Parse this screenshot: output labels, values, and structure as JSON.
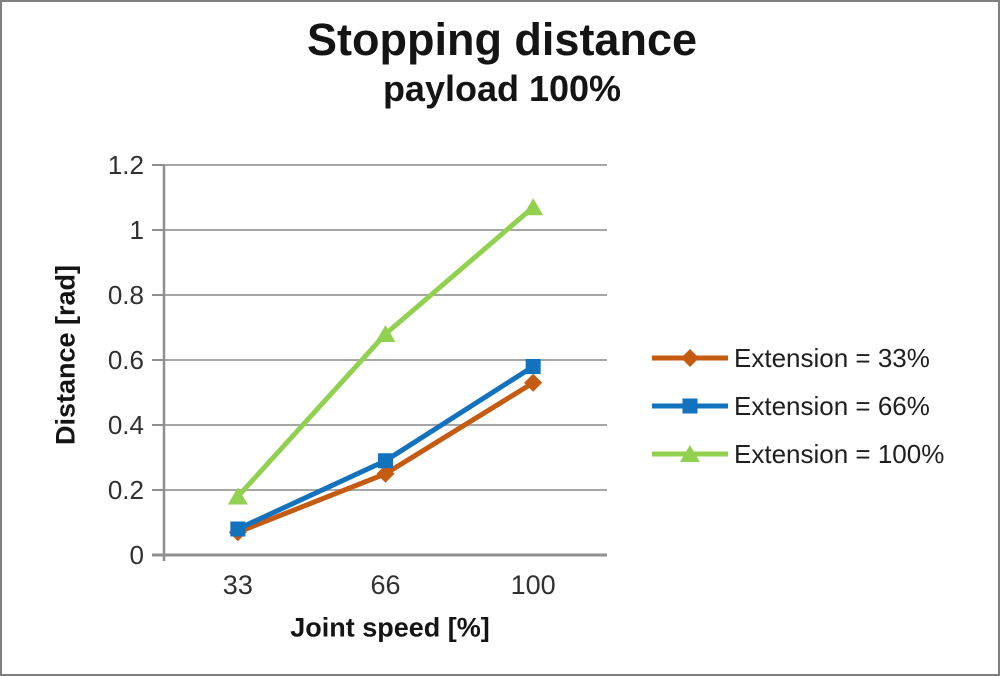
{
  "frame": {
    "border_color": "#7f7f7f",
    "background_color": "#ffffff"
  },
  "chart_data": {
    "type": "line",
    "title": "Stopping distance",
    "subtitle": "payload 100%",
    "xlabel": "Joint speed [%]",
    "ylabel": "Distance [rad]",
    "categories": [
      "33",
      "66",
      "100"
    ],
    "series": [
      {
        "name": "Extension = 33%",
        "color": "#C55A11",
        "marker": "diamond",
        "values": [
          0.07,
          0.25,
          0.53
        ]
      },
      {
        "name": "Extension = 66%",
        "color": "#1272BE",
        "marker": "square",
        "values": [
          0.08,
          0.29,
          0.58
        ]
      },
      {
        "name": "Extension = 100%",
        "color": "#92D050",
        "marker": "triangle",
        "values": [
          0.18,
          0.68,
          1.07
        ]
      }
    ],
    "ylim": [
      0,
      1.2
    ],
    "yticks": [
      0,
      0.2,
      0.4,
      0.6,
      0.8,
      1,
      1.2
    ],
    "ytick_labels": [
      "0",
      "0.2",
      "0.4",
      "0.6",
      "0.8",
      "1",
      "1.2"
    ],
    "grid": "horizontal",
    "gridline_color": "#A6A6A6",
    "axis_color": "#8F8F8F",
    "legend_position": "right"
  }
}
